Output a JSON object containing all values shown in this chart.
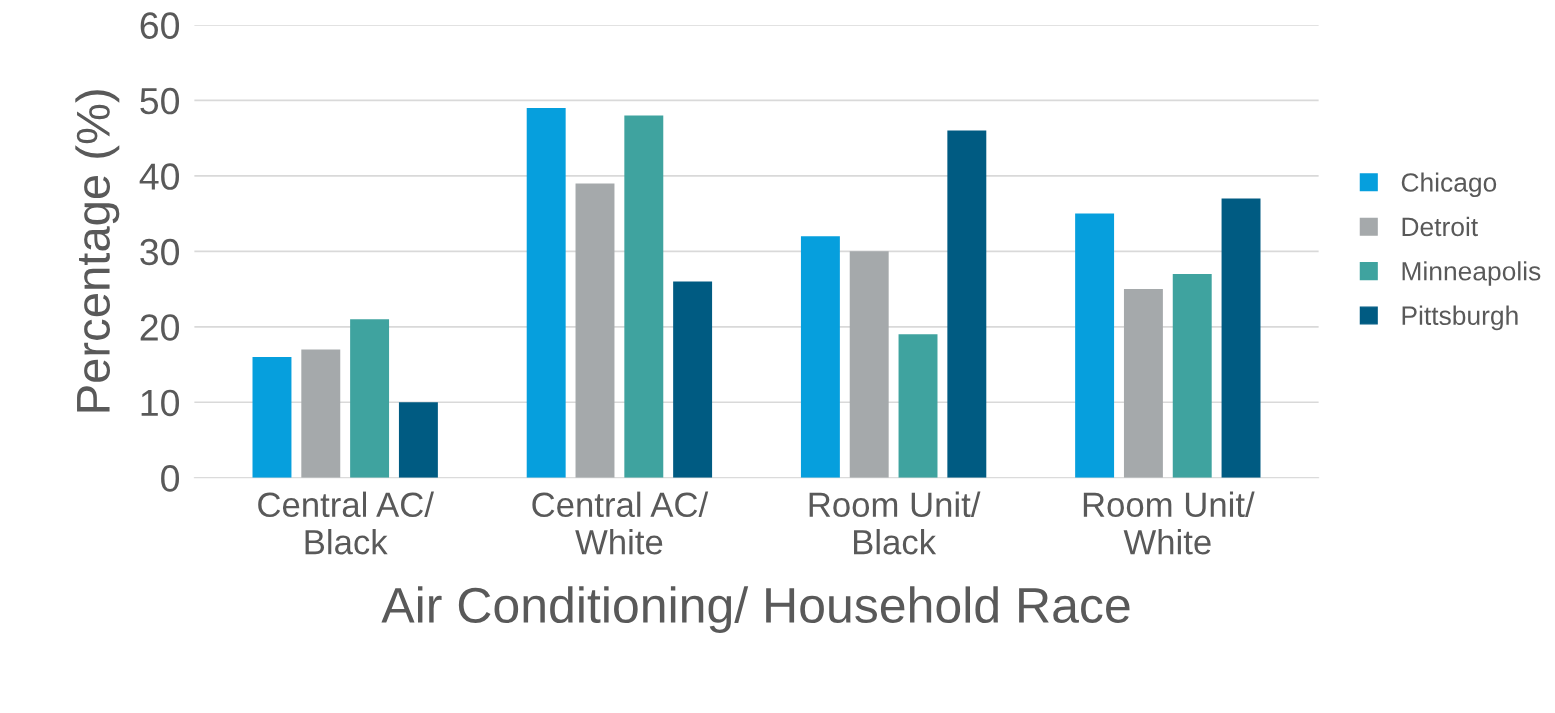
{
  "chart_data": {
    "type": "bar",
    "xlabel": "Air Conditioning/ Household Race",
    "ylabel": "Percentage (%)",
    "categories": [
      "Central AC/\nBlack",
      "Central AC/\nWhite",
      "Room Unit/\nBlack",
      "Room Unit/\nWhite"
    ],
    "series": [
      {
        "name": "Chicago",
        "color": "#069fdd",
        "values": [
          16,
          49,
          32,
          35
        ]
      },
      {
        "name": "Detroit",
        "color": "#a5a9ab",
        "values": [
          17,
          39,
          30,
          25
        ]
      },
      {
        "name": "Minneapolis",
        "color": "#3fa39f",
        "values": [
          21,
          48,
          19,
          27
        ]
      },
      {
        "name": "Pittsburgh",
        "color": "#005b82",
        "values": [
          10,
          26,
          46,
          37
        ]
      }
    ],
    "ylim": [
      0,
      60
    ],
    "yticks": [
      0,
      10,
      20,
      30,
      40,
      50,
      60
    ],
    "grid": "y",
    "legend": "right"
  }
}
